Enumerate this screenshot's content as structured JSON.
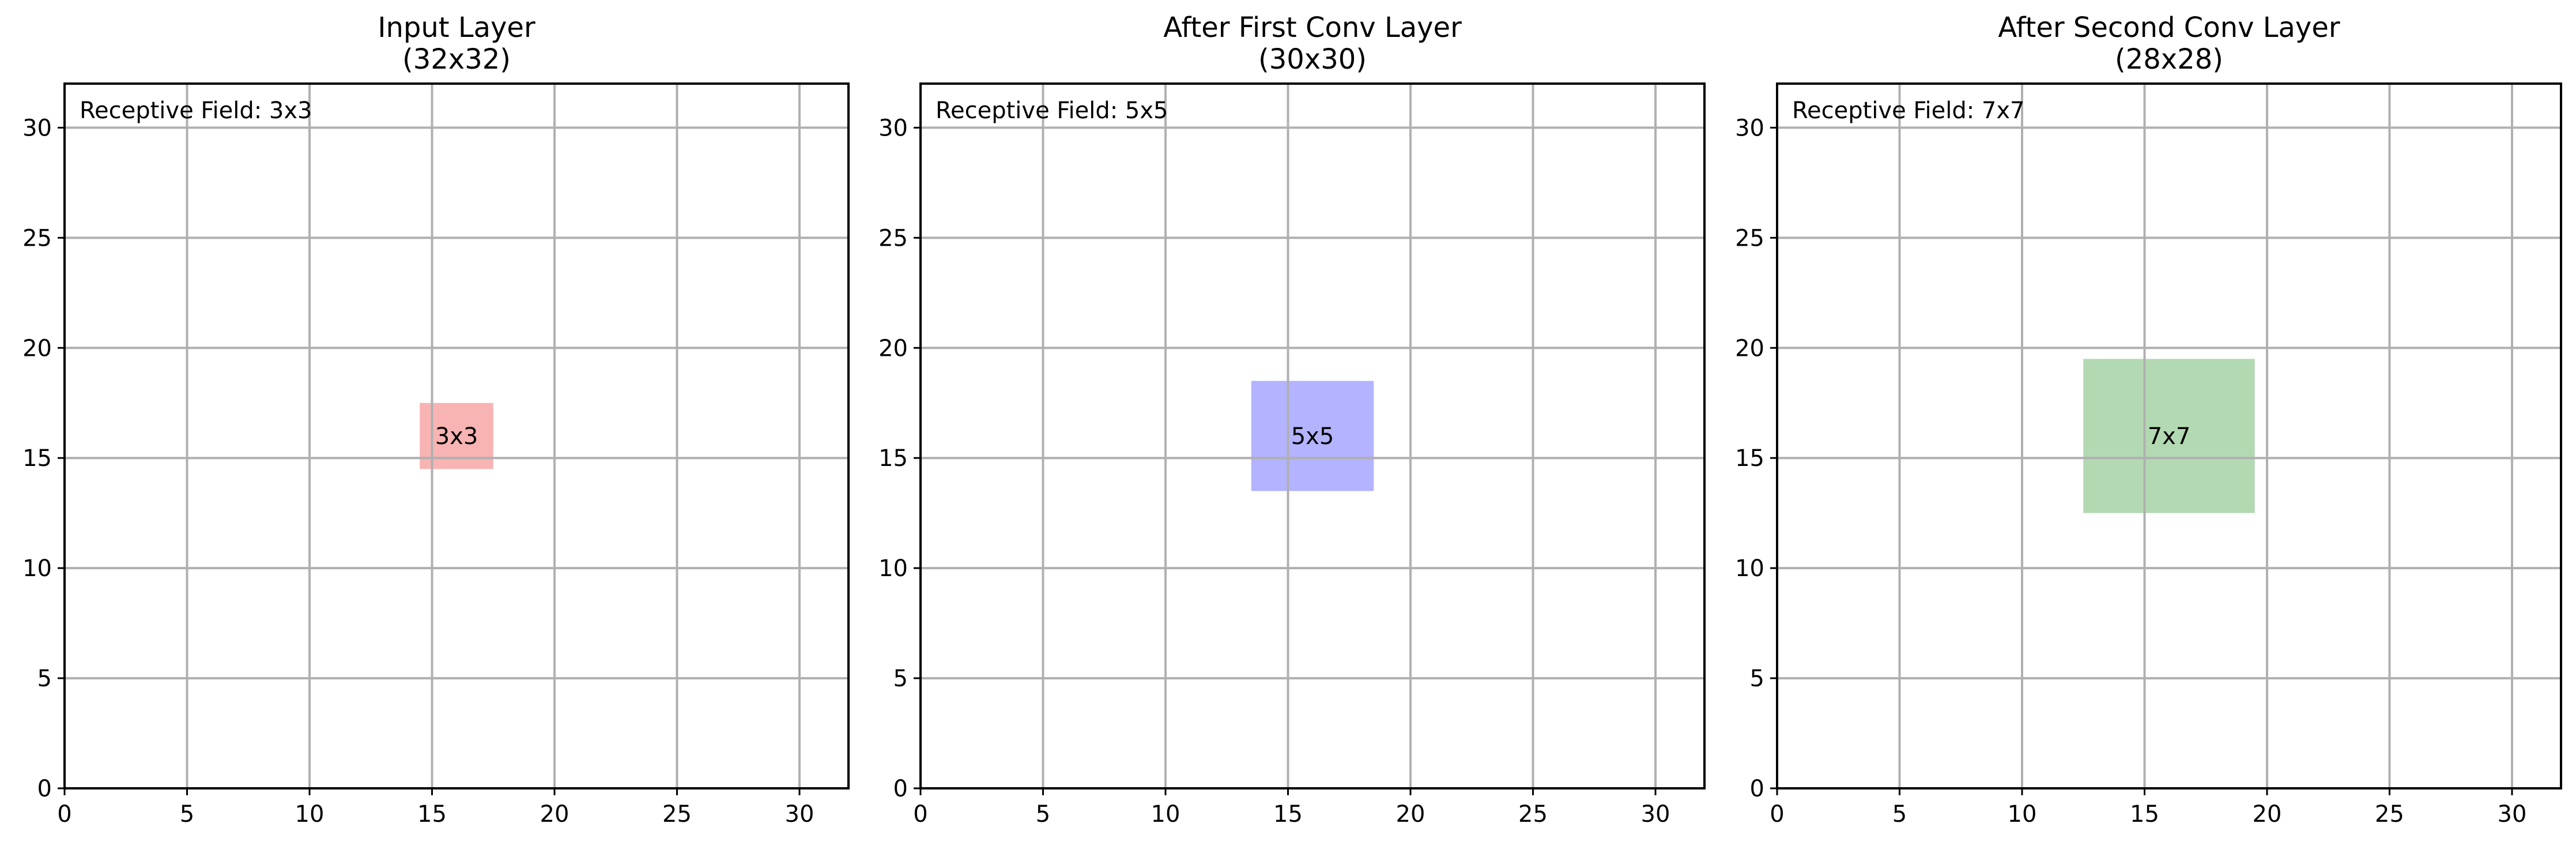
{
  "chart_data": [
    {
      "type": "heatmap",
      "title": "Input Layer\n(32x32)",
      "xlim": [
        0,
        32
      ],
      "ylim": [
        0,
        32
      ],
      "xticks": [
        0,
        5,
        10,
        15,
        20,
        25,
        30
      ],
      "yticks": [
        0,
        5,
        10,
        15,
        20,
        25,
        30
      ],
      "grid": true,
      "annotation": "Receptive Field: 3x3",
      "annotation_position": "top-left",
      "highlight": {
        "x": 14.5,
        "y": 14.5,
        "width": 3,
        "height": 3,
        "color": "#f8b3b3",
        "label": "3x3"
      }
    },
    {
      "type": "heatmap",
      "title": "After First Conv Layer\n(30x30)",
      "xlim": [
        0,
        32
      ],
      "ylim": [
        0,
        32
      ],
      "xticks": [
        0,
        5,
        10,
        15,
        20,
        25,
        30
      ],
      "yticks": [
        0,
        5,
        10,
        15,
        20,
        25,
        30
      ],
      "grid": true,
      "annotation": "Receptive Field: 5x5",
      "annotation_position": "top-left",
      "highlight": {
        "x": 13.5,
        "y": 13.5,
        "width": 5,
        "height": 5,
        "color": "#b3b3ff",
        "label": "5x5"
      }
    },
    {
      "type": "heatmap",
      "title": "After Second Conv Layer\n(28x28)",
      "xlim": [
        0,
        32
      ],
      "ylim": [
        0,
        32
      ],
      "xticks": [
        0,
        5,
        10,
        15,
        20,
        25,
        30
      ],
      "yticks": [
        0,
        5,
        10,
        15,
        20,
        25,
        30
      ],
      "grid": true,
      "annotation": "Receptive Field: 7x7",
      "annotation_position": "top-left",
      "highlight": {
        "x": 12.5,
        "y": 12.5,
        "width": 7,
        "height": 7,
        "color": "#b3d9b3",
        "label": "7x7"
      }
    }
  ]
}
